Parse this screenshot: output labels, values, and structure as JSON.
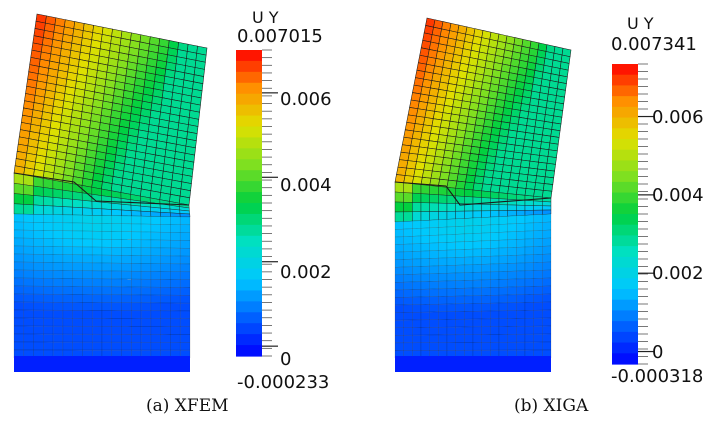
{
  "panels": [
    {
      "id": "xfem",
      "caption": "(a) XFEM",
      "colorbar": {
        "title": "U Y",
        "max": "0.007015",
        "min": "-0.000233",
        "ticks": [
          "0.006",
          "0.004",
          "0.002",
          "0"
        ],
        "range": [
          -0.000233,
          0.007015
        ],
        "tick_values": [
          0.006,
          0.004,
          0.002,
          0
        ]
      }
    },
    {
      "id": "xiga",
      "caption": "(b) XIGA",
      "colorbar": {
        "title": "U Y",
        "max": "0.007341",
        "min": "-0.000318",
        "ticks": [
          "0.006",
          "0.004",
          "0.002",
          "0"
        ],
        "range": [
          -0.000318,
          0.007341
        ],
        "tick_values": [
          0.006,
          0.004,
          0.002,
          0
        ]
      }
    }
  ],
  "colors": {
    "colormap": [
      "#0000ff",
      "#0060ff",
      "#00c8ff",
      "#00e0c0",
      "#00d040",
      "#7fe020",
      "#e0e000",
      "#ff9000",
      "#ff0000"
    ],
    "mesh_line": "#1a1a1a"
  }
}
